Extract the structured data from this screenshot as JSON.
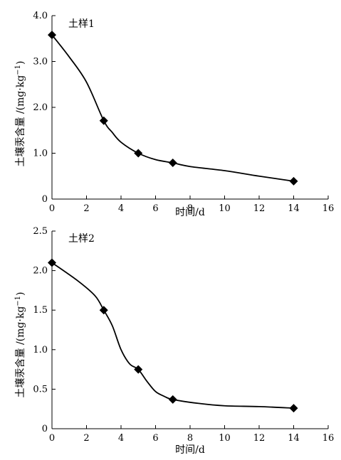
{
  "chart_data": [
    {
      "type": "line",
      "annotation": "土样1",
      "xlabel": "时间/d",
      "ylabel_main": "土壤汞含量 /(mg·kg",
      "ylabel_sup": "−1",
      "ylabel_close": ")",
      "xlim": [
        0,
        16
      ],
      "ylim": [
        0,
        4.0
      ],
      "xticks": [
        0,
        2,
        4,
        6,
        8,
        10,
        12,
        14,
        16
      ],
      "yticks": [
        "0",
        "1.0",
        "2.0",
        "3.0",
        "4.0"
      ],
      "ytick_values": [
        0,
        1.0,
        2.0,
        3.0,
        4.0
      ],
      "grid": false,
      "series": [
        {
          "points": [
            [
              0,
              3.58
            ],
            [
              3,
              1.71
            ],
            [
              5,
              1.0
            ],
            [
              7,
              0.79
            ],
            [
              14,
              0.39
            ]
          ],
          "curve": [
            [
              0,
              3.58
            ],
            [
              1,
              3.1
            ],
            [
              2,
              2.55
            ],
            [
              3,
              1.71
            ],
            [
              3.5,
              1.45
            ],
            [
              4,
              1.24
            ],
            [
              5,
              1.0
            ],
            [
              6,
              0.86
            ],
            [
              7,
              0.79
            ],
            [
              8,
              0.71
            ],
            [
              10,
              0.62
            ],
            [
              12,
              0.5
            ],
            [
              14,
              0.39
            ]
          ]
        }
      ]
    },
    {
      "type": "line",
      "annotation": "土样2",
      "xlabel": "时间/d",
      "ylabel_main": "土壤汞含量 /(mg·kg",
      "ylabel_sup": "−1",
      "ylabel_close": ")",
      "xlim": [
        0,
        16
      ],
      "ylim": [
        0,
        2.5
      ],
      "xticks": [
        0,
        2,
        4,
        6,
        8,
        10,
        12,
        14,
        16
      ],
      "yticks": [
        "0",
        "0.5",
        "1.0",
        "1.5",
        "2.0",
        "2.5"
      ],
      "ytick_values": [
        0,
        0.5,
        1.0,
        1.5,
        2.0,
        2.5
      ],
      "grid": false,
      "series": [
        {
          "points": [
            [
              0,
              2.1
            ],
            [
              3,
              1.5
            ],
            [
              5,
              0.75
            ],
            [
              7,
              0.37
            ],
            [
              14,
              0.26
            ]
          ],
          "curve": [
            [
              0,
              2.1
            ],
            [
              1.5,
              1.87
            ],
            [
              2.5,
              1.68
            ],
            [
              3,
              1.5
            ],
            [
              3.5,
              1.3
            ],
            [
              4,
              1.0
            ],
            [
              4.5,
              0.82
            ],
            [
              5,
              0.75
            ],
            [
              5.5,
              0.6
            ],
            [
              6,
              0.47
            ],
            [
              6.5,
              0.41
            ],
            [
              7,
              0.37
            ],
            [
              8.5,
              0.32
            ],
            [
              10,
              0.29
            ],
            [
              12,
              0.28
            ],
            [
              14,
              0.26
            ]
          ]
        }
      ]
    }
  ]
}
